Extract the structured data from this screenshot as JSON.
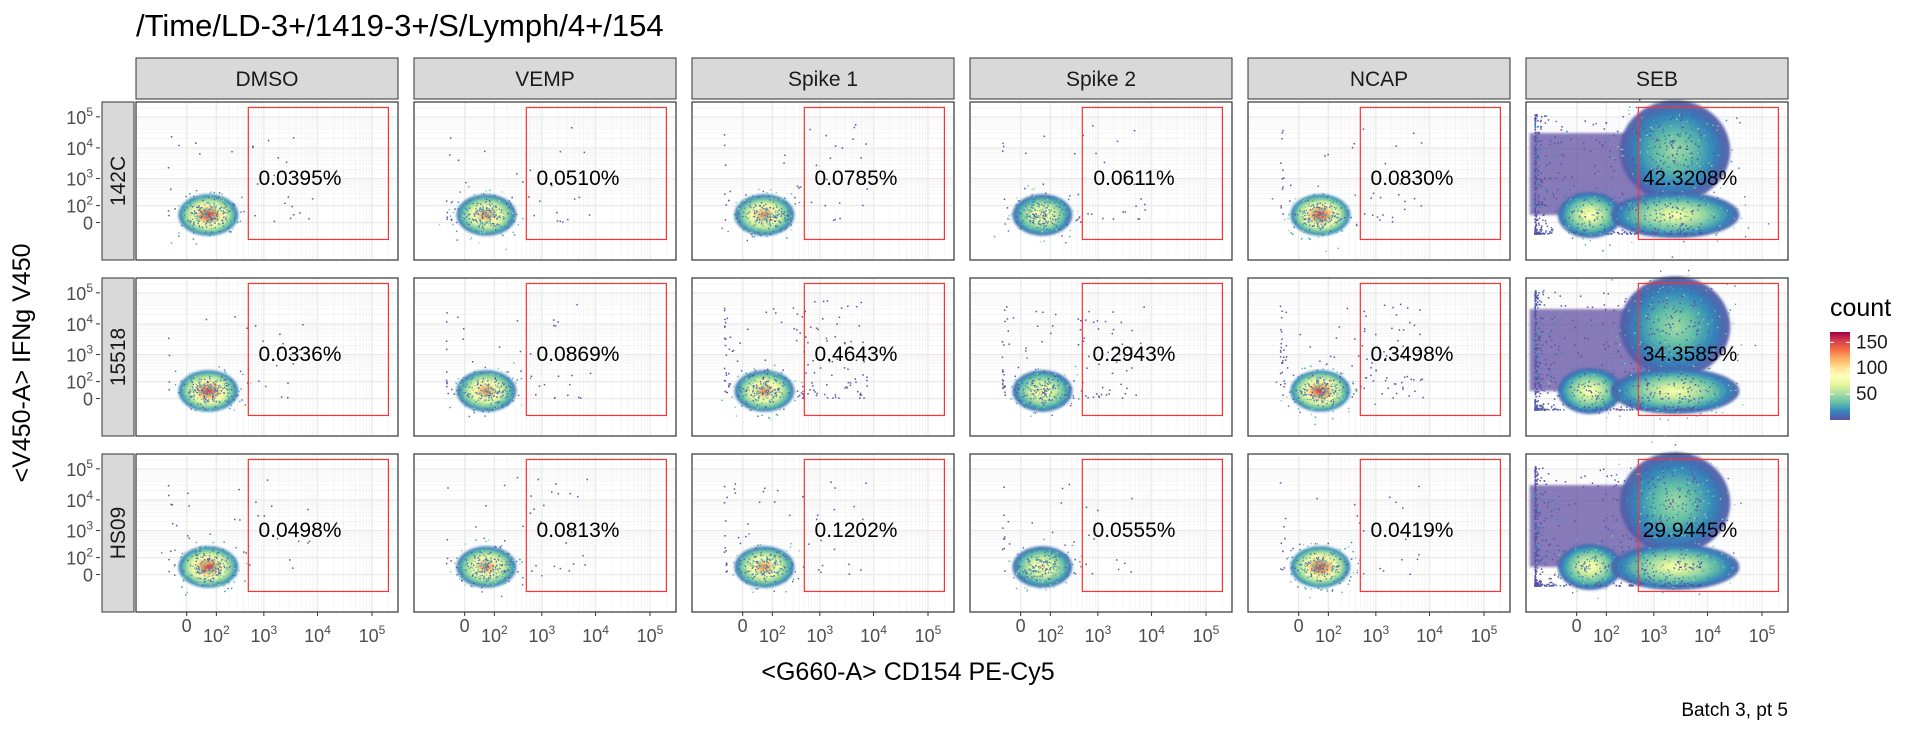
{
  "colors": {
    "gate": "#ff3030",
    "strip_fill": "#d9d9d9",
    "strip_border": "#333333",
    "grid": "#ebebeb",
    "palette": [
      "#5e4fa2",
      "#3288bd",
      "#66c2a5",
      "#abdda4",
      "#e6f598",
      "#ffffbf",
      "#fee08b",
      "#fdae61",
      "#f46d43",
      "#d53e4f",
      "#9e0142"
    ]
  },
  "chart_data": {
    "type": "heatmap",
    "title": "/Time/LD-3+/1419-3+/S/Lymph/4+/154",
    "xlabel": "<G660-A> CD154 PE-Cy5",
    "ylabel": "<V450-A> IFNg V450",
    "caption": "Batch 3, pt 5",
    "x_scale": "biexponential",
    "y_scale": "biexponential",
    "grid": true,
    "x_ticks": [
      {
        "base": "0",
        "exp": ""
      },
      {
        "base": "10",
        "exp": "2"
      },
      {
        "base": "10",
        "exp": "3"
      },
      {
        "base": "10",
        "exp": "4"
      },
      {
        "base": "10",
        "exp": "5"
      }
    ],
    "y_ticks": [
      {
        "base": "10",
        "exp": "5"
      },
      {
        "base": "10",
        "exp": "4"
      },
      {
        "base": "10",
        "exp": "3"
      },
      {
        "base": "10",
        "exp": "2"
      },
      {
        "base": "0",
        "exp": ""
      }
    ],
    "columns": [
      "DMSO",
      "VEMP",
      "Spike 1",
      "Spike 2",
      "NCAP",
      "SEB"
    ],
    "rows": [
      "142C",
      "15518",
      "HS09"
    ],
    "gate": {
      "x_min": 500,
      "x_max": 200000,
      "y_min": -100,
      "y_max": 200000
    },
    "percentages": [
      [
        "0.0395%",
        "0.0510%",
        "0.0785%",
        "0.0611%",
        "0.0830%",
        "42.3208%"
      ],
      [
        "0.0336%",
        "0.0869%",
        "0.4643%",
        "0.2943%",
        "0.3498%",
        "34.3585%"
      ],
      [
        "0.0498%",
        "0.0813%",
        "0.1202%",
        "0.0555%",
        "0.0419%",
        "29.9445%"
      ]
    ],
    "legend": {
      "title": "count",
      "placement": "right",
      "range": [
        0,
        170
      ],
      "ticks": [
        "150",
        "100",
        "50"
      ],
      "tick_values": [
        150,
        100,
        50
      ]
    }
  }
}
